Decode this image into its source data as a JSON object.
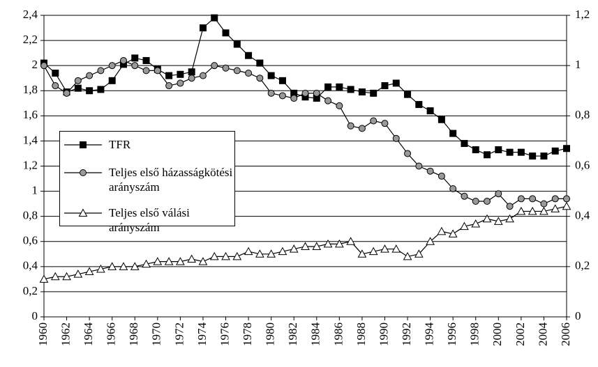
{
  "chart_data": {
    "type": "line",
    "x": [
      1960,
      1961,
      1962,
      1963,
      1964,
      1965,
      1966,
      1967,
      1968,
      1969,
      1970,
      1971,
      1972,
      1973,
      1974,
      1975,
      1976,
      1977,
      1978,
      1979,
      1980,
      1981,
      1982,
      1983,
      1984,
      1985,
      1986,
      1987,
      1988,
      1989,
      1990,
      1991,
      1992,
      1993,
      1994,
      1995,
      1996,
      1997,
      1998,
      1999,
      2000,
      2001,
      2002,
      2003,
      2004,
      2005,
      2006
    ],
    "xlim": [
      1960,
      2006
    ],
    "xticks": [
      1960,
      1962,
      1964,
      1966,
      1968,
      1970,
      1972,
      1974,
      1976,
      1978,
      1980,
      1982,
      1984,
      1986,
      1988,
      1990,
      1992,
      1994,
      1996,
      1998,
      2000,
      2002,
      2004,
      2006
    ],
    "ylim": [
      0,
      2.4
    ],
    "yticks": [
      0,
      {
        "value": 0.2,
        "label": "0,2"
      },
      {
        "value": 0.4,
        "label": "0,4"
      },
      {
        "value": 0.6,
        "label": "0,6"
      },
      {
        "value": 0.8,
        "label": "0,8"
      },
      1,
      {
        "value": 1.2,
        "label": "1,2"
      },
      {
        "value": 1.4,
        "label": "1,4"
      },
      {
        "value": 1.6,
        "label": "1,6"
      },
      {
        "value": 1.8,
        "label": "1,8"
      },
      2,
      {
        "value": 2.2,
        "label": "2,2"
      },
      {
        "value": 2.4,
        "label": "2,4"
      }
    ],
    "y2lim": [
      0,
      1.2
    ],
    "y2ticks": [
      0,
      {
        "value": 0.2,
        "label": "0,2"
      },
      {
        "value": 0.4,
        "label": "0,4"
      },
      {
        "value": 0.6,
        "label": "0,6"
      },
      {
        "value": 0.8,
        "label": "0,8"
      },
      1,
      {
        "value": 1.2,
        "label": "1,2"
      }
    ],
    "grid": true,
    "legend": "left",
    "series": [
      {
        "name": "TFR",
        "color": "#000000",
        "marker": "square",
        "values": [
          2.02,
          1.94,
          1.79,
          1.82,
          1.8,
          1.81,
          1.88,
          2.01,
          2.06,
          2.04,
          1.97,
          1.92,
          1.93,
          1.95,
          2.3,
          2.38,
          2.26,
          2.17,
          2.08,
          2.02,
          1.92,
          1.88,
          1.78,
          1.75,
          1.74,
          1.83,
          1.83,
          1.81,
          1.79,
          1.78,
          1.84,
          1.86,
          1.77,
          1.69,
          1.64,
          1.57,
          1.46,
          1.38,
          1.33,
          1.29,
          1.33,
          1.31,
          1.31,
          1.28,
          1.28,
          1.32,
          1.34
        ]
      },
      {
        "name": "Teljes első házasságkötési arányszám",
        "color": "#999999",
        "marker": "circle",
        "axis": "y2",
        "values": [
          1.0,
          0.92,
          0.89,
          0.94,
          0.96,
          0.98,
          1.0,
          1.02,
          1.0,
          0.98,
          0.98,
          0.92,
          0.93,
          0.95,
          0.96,
          1.0,
          0.99,
          0.98,
          0.97,
          0.95,
          0.89,
          0.88,
          0.87,
          0.89,
          0.89,
          0.86,
          0.84,
          0.76,
          0.75,
          0.78,
          0.77,
          0.71,
          0.65,
          0.6,
          0.58,
          0.56,
          0.51,
          0.48,
          0.46,
          0.46,
          0.49,
          0.44,
          0.47,
          0.47,
          0.45,
          0.47,
          0.47
        ]
      },
      {
        "name": "Teljes első válási arányszám",
        "color": "#ffffff",
        "marker": "triangle",
        "axis": "y2",
        "values": [
          0.15,
          0.16,
          0.16,
          0.17,
          0.18,
          0.19,
          0.2,
          0.2,
          0.2,
          0.21,
          0.22,
          0.22,
          0.22,
          0.23,
          0.22,
          0.24,
          0.24,
          0.24,
          0.26,
          0.25,
          0.25,
          0.26,
          0.27,
          0.28,
          0.28,
          0.29,
          0.29,
          0.3,
          0.25,
          0.26,
          0.27,
          0.27,
          0.24,
          0.25,
          0.3,
          0.34,
          0.33,
          0.36,
          0.37,
          0.39,
          0.38,
          0.39,
          0.42,
          0.42,
          0.42,
          0.43,
          0.44
        ]
      }
    ]
  }
}
